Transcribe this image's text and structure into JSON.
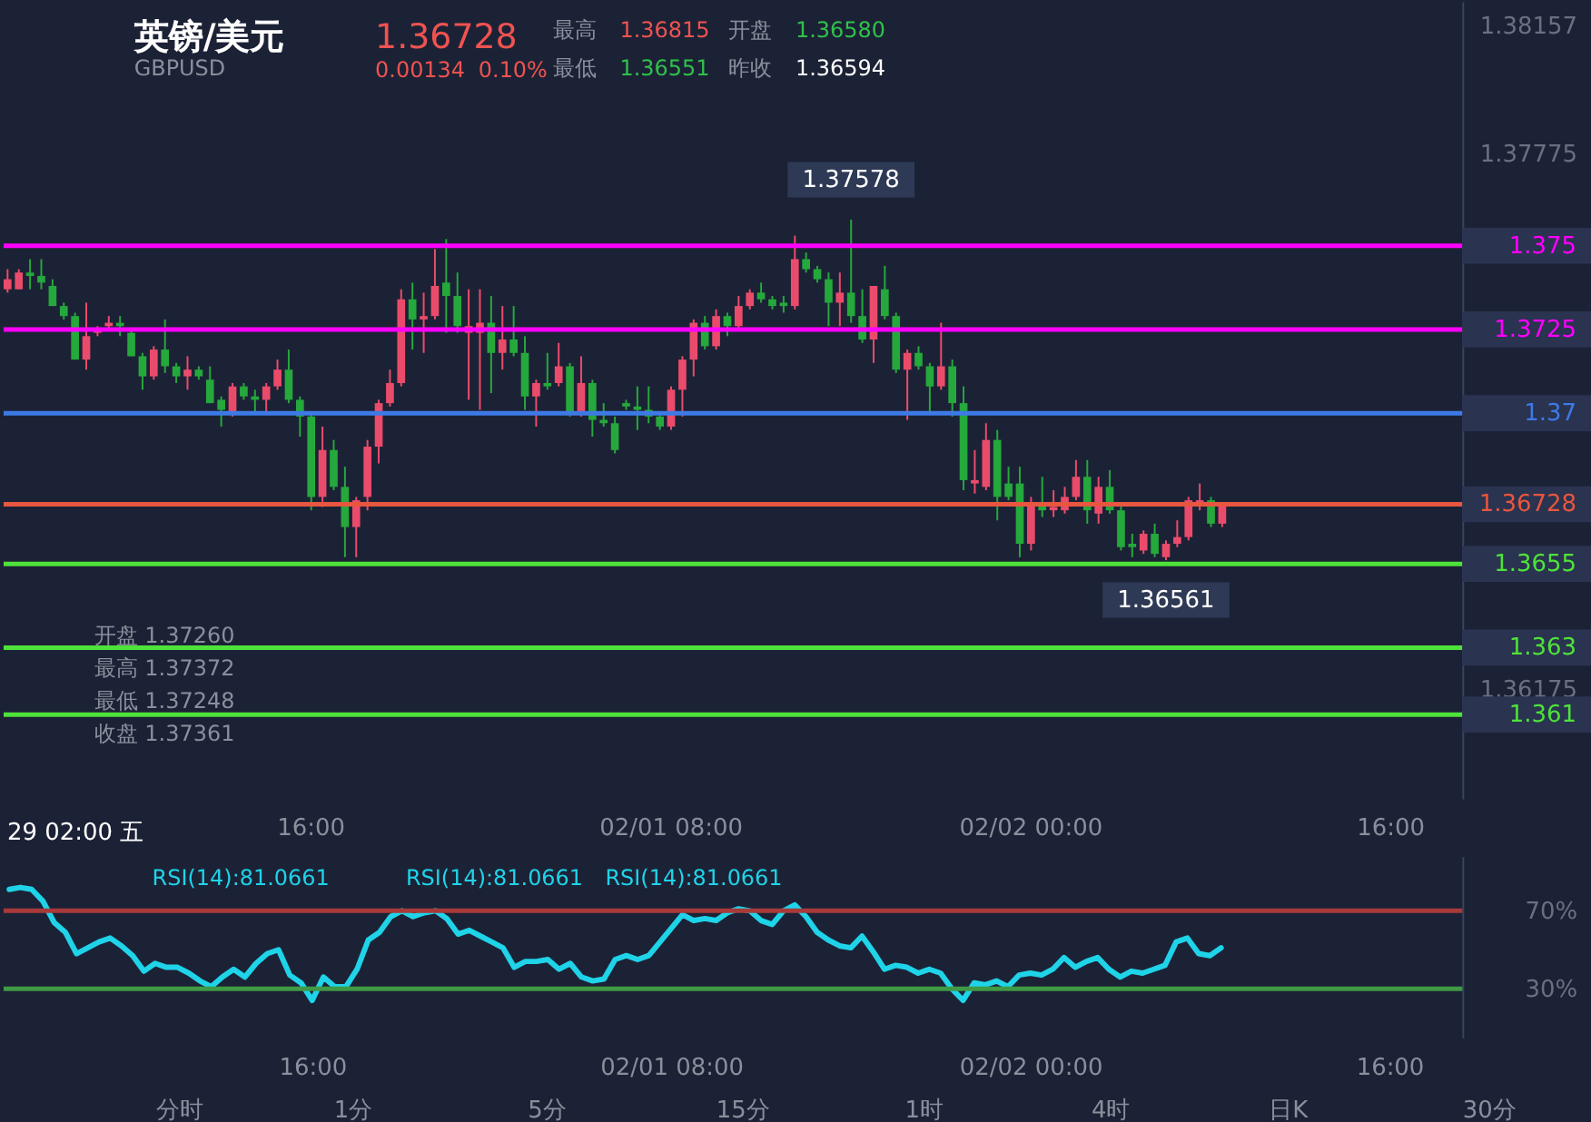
{
  "chart_data": [
    {
      "type": "candlestick",
      "title": "英镑/美元",
      "subtitle": "GBPUSD",
      "categories": [
        null,
        null,
        null,
        null,
        null,
        null,
        null,
        null,
        null,
        null,
        null,
        null,
        null,
        null,
        null,
        null,
        null,
        null,
        null,
        null,
        null,
        null,
        null,
        null,
        null,
        null,
        null,
        "16:00",
        null,
        null,
        null,
        null,
        null,
        null,
        null,
        null,
        null,
        null,
        null,
        null,
        null,
        null,
        null,
        null,
        null,
        null,
        null,
        null,
        null,
        null,
        null,
        null,
        null,
        null,
        null,
        null,
        null,
        null,
        null,
        "02/01 08:00",
        null,
        null,
        null,
        null,
        null,
        null,
        null,
        null,
        null,
        null,
        null,
        null,
        null,
        null,
        null,
        null,
        null,
        null,
        null,
        null,
        null,
        null,
        null,
        null,
        null,
        null,
        null,
        null,
        null,
        null,
        null,
        "02/02 00:00",
        null,
        null,
        null,
        null,
        null,
        null,
        null,
        null,
        null,
        null,
        null,
        null,
        null,
        null,
        null,
        null,
        null,
        null,
        null,
        null,
        null,
        null,
        null,
        null,
        null,
        null,
        null,
        null,
        null,
        null,
        null,
        "16:00",
        null,
        null,
        null,
        null,
        null,
        null
      ],
      "ohlc": [
        [
          1.3737,
          1.3743,
          1.3736,
          1.374
        ],
        [
          1.3737,
          1.3743,
          1.3737,
          1.3742
        ],
        [
          1.3742,
          1.3746,
          1.3737,
          1.3741
        ],
        [
          1.3741,
          1.3746,
          1.3737,
          1.3739
        ],
        [
          1.3738,
          1.374,
          1.3732,
          1.3732
        ],
        [
          1.3732,
          1.3733,
          1.3728,
          1.3729
        ],
        [
          1.3729,
          1.373,
          1.3716,
          1.3716
        ],
        [
          1.3716,
          1.3733,
          1.3713,
          1.3723
        ],
        [
          1.3724,
          1.3726,
          1.3723,
          1.3725
        ],
        [
          1.3726,
          1.3729,
          1.3725,
          1.3727
        ],
        [
          1.3727,
          1.3729,
          1.3723,
          1.3726
        ],
        [
          1.3724,
          1.3725,
          1.3717,
          1.3717
        ],
        [
          1.3717,
          1.3718,
          1.3707,
          1.3711
        ],
        [
          1.3711,
          1.372,
          1.371,
          1.3719
        ],
        [
          1.3719,
          1.3728,
          1.3712,
          1.3714
        ],
        [
          1.3714,
          1.3715,
          1.3709,
          1.3711
        ],
        [
          1.3711,
          1.3717,
          1.3707,
          1.3713
        ],
        [
          1.3713,
          1.3714,
          1.371,
          1.3711
        ],
        [
          1.371,
          1.3714,
          1.3703,
          1.3703
        ],
        [
          1.3704,
          1.3705,
          1.3696,
          1.3701
        ],
        [
          1.37,
          1.3709,
          1.3699,
          1.3708
        ],
        [
          1.3708,
          1.3709,
          1.3704,
          1.3705
        ],
        [
          1.3705,
          1.3707,
          1.37,
          1.3704
        ],
        [
          1.3704,
          1.3709,
          1.37,
          1.3708
        ],
        [
          1.3708,
          1.3716,
          1.3707,
          1.3713
        ],
        [
          1.3713,
          1.3719,
          1.3703,
          1.3704
        ],
        [
          1.3704,
          1.3705,
          1.3693,
          1.3699
        ],
        [
          1.3699,
          1.37,
          1.3671,
          1.3675
        ],
        [
          1.3675,
          1.3696,
          1.3672,
          1.3689
        ],
        [
          1.3689,
          1.3692,
          1.3677,
          1.3678
        ],
        [
          1.3678,
          1.3684,
          1.3657,
          1.3666
        ],
        [
          1.3666,
          1.3675,
          1.3657,
          1.3674
        ],
        [
          1.3675,
          1.3692,
          1.3671,
          1.369
        ],
        [
          1.369,
          1.3704,
          1.3685,
          1.3703
        ],
        [
          1.3703,
          1.3713,
          1.3702,
          1.3709
        ],
        [
          1.3709,
          1.3737,
          1.3708,
          1.3734
        ],
        [
          1.3734,
          1.3739,
          1.3719,
          1.3728
        ],
        [
          1.3728,
          1.3736,
          1.3718,
          1.3729
        ],
        [
          1.3729,
          1.3749,
          1.3728,
          1.3738
        ],
        [
          1.3739,
          1.3752,
          1.3724,
          1.3735
        ],
        [
          1.3735,
          1.3742,
          1.3724,
          1.3726
        ],
        [
          1.3724,
          1.3737,
          1.3704,
          1.3726
        ],
        [
          1.3724,
          1.3737,
          1.3701,
          1.3727
        ],
        [
          1.3727,
          1.3735,
          1.3706,
          1.3718
        ],
        [
          1.3718,
          1.3732,
          1.3713,
          1.3722
        ],
        [
          1.3722,
          1.3732,
          1.3717,
          1.3718
        ],
        [
          1.3718,
          1.3723,
          1.3701,
          1.3705
        ],
        [
          1.3705,
          1.371,
          1.3696,
          1.3709
        ],
        [
          1.3709,
          1.3718,
          1.3707,
          1.3708
        ],
        [
          1.3709,
          1.3721,
          1.3708,
          1.3714
        ],
        [
          1.3714,
          1.3715,
          1.3699,
          1.37
        ],
        [
          1.37,
          1.3717,
          1.3699,
          1.3709
        ],
        [
          1.3709,
          1.371,
          1.3693,
          1.3698
        ],
        [
          1.3698,
          1.3703,
          1.3696,
          1.3697
        ],
        [
          1.3697,
          1.3699,
          1.3688,
          1.3689
        ],
        [
          1.3703,
          1.3704,
          1.3701,
          1.3702
        ],
        [
          1.3702,
          1.3708,
          1.3695,
          1.3701
        ],
        [
          1.3701,
          1.3708,
          1.3697,
          1.3699
        ],
        [
          1.3699,
          1.37,
          1.3695,
          1.3696
        ],
        [
          1.3696,
          1.3708,
          1.3695,
          1.3707
        ],
        [
          1.3707,
          1.3717,
          1.3699,
          1.3716
        ],
        [
          1.3716,
          1.3728,
          1.3711,
          1.3727
        ],
        [
          1.3727,
          1.3729,
          1.3719,
          1.372
        ],
        [
          1.372,
          1.3731,
          1.3719,
          1.3729
        ],
        [
          1.3729,
          1.373,
          1.3723,
          1.3726
        ],
        [
          1.3726,
          1.3735,
          1.3725,
          1.3732
        ],
        [
          1.3732,
          1.3737,
          1.3731,
          1.3736
        ],
        [
          1.3736,
          1.3739,
          1.3733,
          1.3734
        ],
        [
          1.3734,
          1.3735,
          1.3731,
          1.3732
        ],
        [
          1.3733,
          1.3735,
          1.373,
          1.3732
        ],
        [
          1.3732,
          1.3753,
          1.3731,
          1.3746
        ],
        [
          1.3746,
          1.3748,
          1.3742,
          1.3743
        ],
        [
          1.3743,
          1.3744,
          1.3739,
          1.374
        ],
        [
          1.374,
          1.3742,
          1.3726,
          1.3733
        ],
        [
          1.3733,
          1.3742,
          1.3726,
          1.3736
        ],
        [
          1.3736,
          1.37578,
          1.3727,
          1.3729
        ],
        [
          1.3729,
          1.3737,
          1.3721,
          1.3722
        ],
        [
          1.3722,
          1.3738,
          1.3715,
          1.3738
        ],
        [
          1.3737,
          1.3744,
          1.3728,
          1.3729
        ],
        [
          1.3729,
          1.373,
          1.3712,
          1.3713
        ],
        [
          1.3713,
          1.3719,
          1.3698,
          1.3718
        ],
        [
          1.3718,
          1.372,
          1.3713,
          1.3714
        ],
        [
          1.3714,
          1.3715,
          1.37,
          1.3708
        ],
        [
          1.3708,
          1.3727,
          1.3707,
          1.3714
        ],
        [
          1.3714,
          1.3716,
          1.3699,
          1.3703
        ],
        [
          1.3703,
          1.3708,
          1.3677,
          1.368
        ],
        [
          1.3679,
          1.3689,
          1.3676,
          1.368
        ],
        [
          1.3678,
          1.3697,
          1.3677,
          1.3692
        ],
        [
          1.3692,
          1.3695,
          1.3668,
          1.3675
        ],
        [
          1.3679,
          1.3684,
          1.3674,
          1.3675
        ],
        [
          1.3679,
          1.3684,
          1.3657,
          1.3661
        ],
        [
          1.3661,
          1.3675,
          1.3659,
          1.3673
        ],
        [
          1.3673,
          1.3681,
          1.3669,
          1.3671
        ],
        [
          1.3671,
          1.3677,
          1.3669,
          1.3672
        ],
        [
          1.3671,
          1.3678,
          1.367,
          1.3675
        ],
        [
          1.3675,
          1.3686,
          1.3674,
          1.3681
        ],
        [
          1.3681,
          1.3686,
          1.3667,
          1.3671
        ],
        [
          1.367,
          1.3681,
          1.3667,
          1.3678
        ],
        [
          1.3678,
          1.3683,
          1.367,
          1.3671
        ],
        [
          1.3671,
          1.3673,
          1.3659,
          1.366
        ],
        [
          1.3661,
          1.3664,
          1.3657,
          1.366
        ],
        [
          1.3659,
          1.3665,
          1.3658,
          1.3664
        ],
        [
          1.3664,
          1.3667,
          1.3657,
          1.3658
        ],
        [
          1.3657,
          1.3662,
          1.36561,
          1.3661
        ],
        [
          1.3661,
          1.3668,
          1.366,
          1.3663
        ],
        [
          1.3663,
          1.3675,
          1.3662,
          1.3674
        ],
        [
          1.3673,
          1.3679,
          1.3671,
          1.3674
        ],
        [
          1.3674,
          1.3675,
          1.3666,
          1.3667
        ],
        [
          1.3667,
          1.3673,
          1.3666,
          1.36728
        ],
        null,
        null,
        null,
        null,
        null,
        null,
        null,
        null,
        null,
        null,
        null,
        null,
        null,
        null,
        null,
        null,
        null,
        null,
        null,
        null,
        null
      ],
      "colors": [
        "#eb4b6b",
        "#eb4b6b",
        "#25a83c",
        "#25a83c",
        "#25a83c",
        "#25a83c",
        "#25a83c",
        "#eb4b6b",
        "#eb4b6b",
        "#eb4b6b",
        "#25a83c",
        "#25a83c",
        "#25a83c",
        "#eb4b6b",
        "#25a83c",
        "#25a83c",
        "#eb4b6b",
        "#25a83c",
        "#25a83c",
        "#25a83c",
        "#eb4b6b",
        "#25a83c",
        "#25a83c",
        "#eb4b6b",
        "#eb4b6b",
        "#25a83c",
        "#25a83c",
        "#25a83c",
        "#eb4b6b",
        "#25a83c",
        "#25a83c",
        "#eb4b6b",
        "#eb4b6b",
        "#eb4b6b",
        "#eb4b6b",
        "#eb4b6b",
        "#25a83c",
        "#eb4b6b",
        "#eb4b6b",
        "#25a83c",
        "#25a83c",
        "#eb4b6b",
        "#eb4b6b",
        "#25a83c",
        "#eb4b6b",
        "#25a83c",
        "#25a83c",
        "#eb4b6b",
        "#25a83c",
        "#eb4b6b",
        "#25a83c",
        "#eb4b6b",
        "#25a83c",
        "#25a83c",
        "#25a83c",
        "#25a83c",
        "#25a83c",
        "#25a83c",
        "#25a83c",
        "#eb4b6b",
        "#eb4b6b",
        "#eb4b6b",
        "#25a83c",
        "#eb4b6b",
        "#25a83c",
        "#eb4b6b",
        "#eb4b6b",
        "#25a83c",
        "#25a83c",
        "#25a83c",
        "#eb4b6b",
        "#25a83c",
        "#25a83c",
        "#25a83c",
        "#eb4b6b",
        "#25a83c",
        "#25a83c",
        "#eb4b6b",
        "#25a83c",
        "#25a83c",
        "#eb4b6b",
        "#25a83c",
        "#25a83c",
        "#eb4b6b",
        "#25a83c",
        "#25a83c",
        "#eb4b6b",
        "#eb4b6b",
        "#25a83c",
        "#25a83c",
        "#25a83c",
        "#eb4b6b",
        "#25a83c",
        "#eb4b6b",
        "#eb4b6b",
        "#eb4b6b",
        "#25a83c",
        "#eb4b6b",
        "#25a83c",
        "#25a83c",
        "#25a83c",
        "#eb4b6b",
        "#25a83c",
        "#eb4b6b",
        "#eb4b6b",
        "#eb4b6b",
        "#eb4b6b",
        "#25a83c",
        "#eb4b6b",
        null,
        null,
        null,
        null,
        null,
        null,
        null,
        null,
        null,
        null,
        null,
        null,
        null,
        null,
        null,
        null,
        null,
        null,
        null,
        null,
        null
      ],
      "ylim": [
        1.3585,
        1.3823
      ],
      "yticks": [
        1.38157,
        1.37775,
        1.36175
      ],
      "ref_lines": [
        {
          "axis": "y",
          "value": 1.375,
          "label": "1.375",
          "color": "#ff00ff"
        },
        {
          "axis": "y",
          "value": 1.3725,
          "label": "1.3725",
          "color": "#ff00ff"
        },
        {
          "axis": "y",
          "value": 1.37,
          "label": "1.37",
          "color": "#3d7ae6"
        },
        {
          "axis": "y",
          "value": 1.3655,
          "label": "1.3655",
          "color": "#4ee23a"
        },
        {
          "axis": "y",
          "value": 1.363,
          "label": "1.363",
          "color": "#4ee23a"
        },
        {
          "axis": "y",
          "value": 1.361,
          "label": "1.361",
          "color": "#4ee23a"
        },
        {
          "axis": "y",
          "value": 1.36728,
          "label": "1.36728",
          "color": "#e8563f"
        }
      ],
      "annotations": [
        "1.36728",
        "0.00134",
        "0.10%",
        "最高",
        "1.36815",
        "开盘",
        "1.36580",
        "最低",
        "1.36551",
        "昨收",
        "1.36594",
        "开盘 1.37260",
        "最高 1.37372",
        "最低 1.37248",
        "收盘 1.37361",
        "29 02:00 五",
        {
          "text": "1.37578",
          "y": 1.37578
        },
        {
          "text": "1.36561",
          "y": 1.36561
        }
      ]
    },
    {
      "type": "line",
      "categories": [
        null,
        null,
        null,
        null,
        null,
        null,
        null,
        null,
        null,
        null,
        null,
        null,
        null,
        null,
        null,
        null,
        null,
        null,
        null,
        null,
        null,
        null,
        null,
        null,
        null,
        null,
        null,
        "16:00",
        null,
        null,
        null,
        null,
        null,
        null,
        null,
        null,
        null,
        null,
        null,
        null,
        null,
        null,
        null,
        null,
        null,
        null,
        null,
        null,
        null,
        null,
        null,
        null,
        null,
        null,
        null,
        null,
        null,
        null,
        null,
        "02/01 08:00",
        null,
        null,
        null,
        null,
        null,
        null,
        null,
        null,
        null,
        null,
        null,
        null,
        null,
        null,
        null,
        null,
        null,
        null,
        null,
        null,
        null,
        null,
        null,
        null,
        null,
        null,
        null,
        null,
        null,
        null,
        null,
        "02/02 00:00",
        null,
        null,
        null,
        null,
        null,
        null,
        null,
        null,
        null,
        null,
        null,
        null,
        null,
        null,
        null,
        null,
        null,
        null,
        null,
        null,
        null,
        null,
        null,
        null,
        null,
        null,
        null,
        null,
        null,
        null,
        null,
        "16:00",
        null,
        null,
        null,
        null,
        null,
        null
      ],
      "series": [
        {
          "name": "RSI(14):81.0661",
          "color": "#1fd3e8",
          "values": [
            81,
            82,
            81,
            75,
            64,
            59,
            48,
            51,
            54,
            56,
            52,
            47,
            39,
            43,
            41,
            41,
            38,
            34,
            31,
            36,
            40,
            36,
            43,
            48,
            50,
            37,
            33,
            24,
            36,
            31,
            31,
            40,
            55,
            59,
            67,
            70,
            67,
            69,
            70,
            66,
            58,
            60,
            57,
            54,
            51,
            41,
            44,
            44,
            45,
            40,
            43,
            36,
            34,
            35,
            45,
            47,
            45,
            47,
            54,
            61,
            68,
            65,
            66,
            65,
            69,
            71,
            70,
            65,
            63,
            70,
            73,
            67,
            59,
            55,
            52,
            51,
            57,
            49,
            40,
            42,
            41,
            38,
            40,
            38,
            30,
            24,
            33,
            32,
            34,
            31,
            37,
            38,
            37,
            40,
            46,
            41,
            44,
            46,
            40,
            36,
            39,
            38,
            40,
            42,
            54,
            56,
            48,
            47,
            51,
            null,
            null,
            null,
            null,
            null,
            null,
            null,
            null,
            null,
            null,
            null,
            null,
            null,
            null,
            null,
            null,
            null,
            null,
            null,
            null,
            null
          ]
        }
      ],
      "ylim": [
        5,
        98
      ],
      "yticks": [
        {
          "value": 70,
          "label": "70%"
        },
        {
          "value": 30,
          "label": "30%"
        }
      ],
      "ref_lines": [
        {
          "axis": "y",
          "value": 70,
          "color": "#a83a3a"
        },
        {
          "axis": "y",
          "value": 30,
          "color": "#3f9a45"
        }
      ],
      "line_style": "solid",
      "annotations": [
        "RSI(14):81.0661",
        "RSI(14):81.0661",
        "分时",
        "1分",
        "5分",
        "15分",
        "1时",
        "4时",
        "日K",
        "30分"
      ]
    }
  ]
}
